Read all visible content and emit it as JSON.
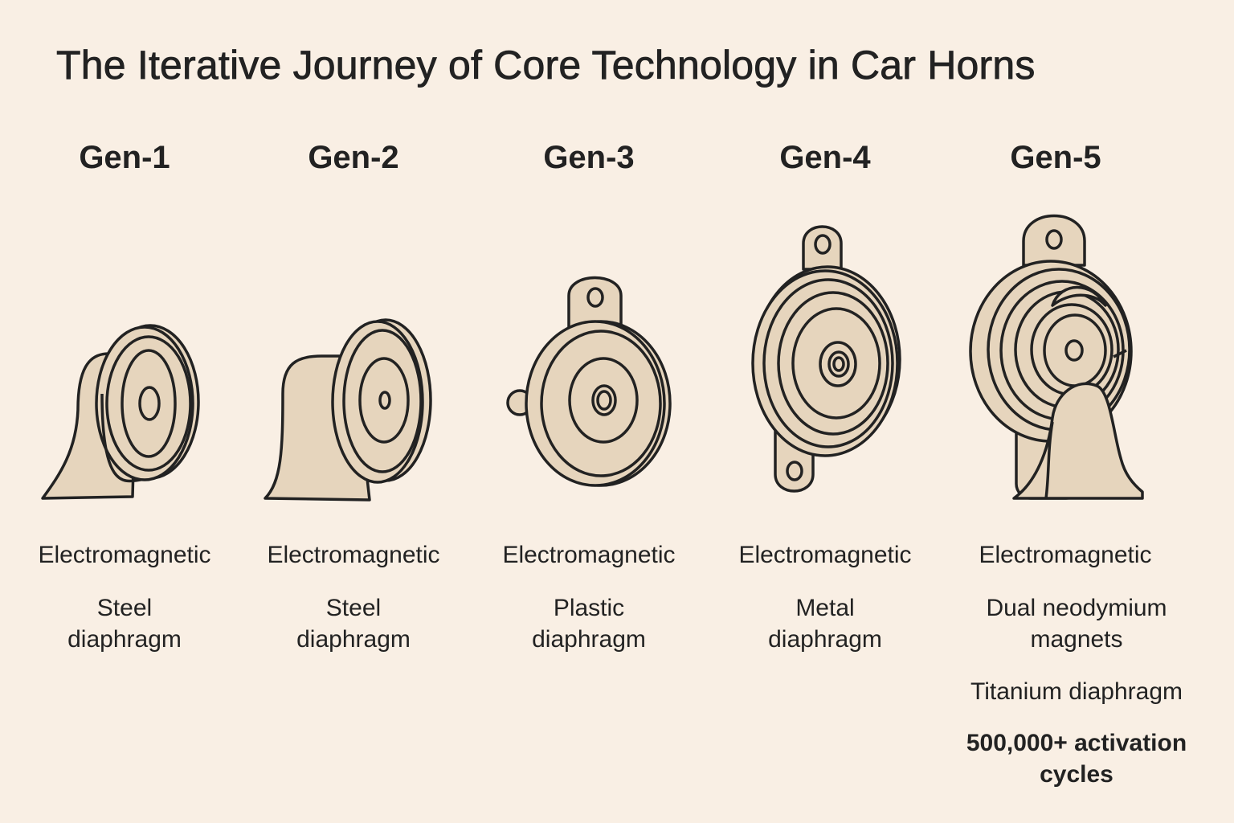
{
  "title": "The Iterative Journey of Core Technology in Car Horns",
  "colors": {
    "background": "#f9efe4",
    "horn_fill": "#e6d5bd",
    "ink": "#222222"
  },
  "generations": [
    {
      "label": "Gen-1",
      "icon": "horn-gen1-icon",
      "lines": [
        "Electromagnetic",
        "Steel\ndiaphragm"
      ]
    },
    {
      "label": "Gen-2",
      "icon": "horn-gen2-icon",
      "lines": [
        "Electromagnetic",
        "Steel\ndiaphragm"
      ]
    },
    {
      "label": "Gen-3",
      "icon": "horn-gen3-icon",
      "lines": [
        "Electromagnetic",
        "Plastic\ndiaphragm"
      ]
    },
    {
      "label": "Gen-4",
      "icon": "horn-gen4-icon",
      "lines": [
        "Electromagnetic",
        "Metal\ndiaphragm"
      ]
    },
    {
      "label": "Gen-5",
      "icon": "horn-gen5-icon",
      "lines": [
        "Electromagnetic",
        "Dual neodymium\nmagnets",
        "Titanium diaphragm",
        "500,000+ activation\ncycles"
      ]
    }
  ]
}
